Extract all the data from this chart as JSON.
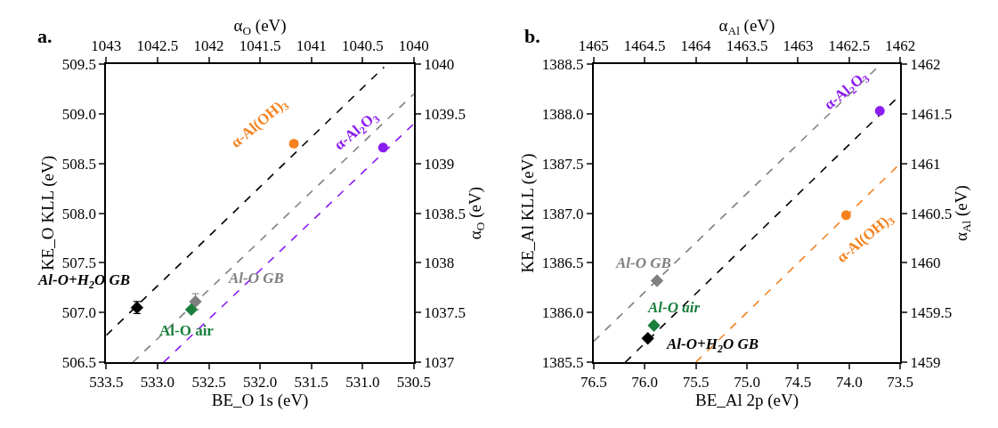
{
  "chart_data": [
    {
      "type": "scatter",
      "title": "a.",
      "xlabel": "BE_O 1s (eV)",
      "ylabel": "KE_O KLL (eV)",
      "x2label": "α$_{O}$ (eV)",
      "y2label": "α$_{O}$ (eV)",
      "legend": false,
      "xlim": [
        533.5,
        530.5
      ],
      "xticks": [
        533.5,
        {
          "value": 533,
          "label": "533.0"
        },
        532.5,
        {
          "value": 532,
          "label": "532.0"
        },
        531.5,
        {
          "value": 531,
          "label": "531.0"
        },
        530.5
      ],
      "ylim": [
        506.5,
        509.5
      ],
      "yticks": [
        506.5,
        {
          "value": 507,
          "label": "507.0"
        },
        507.5,
        {
          "value": 508,
          "label": "508.0"
        },
        508.5,
        {
          "value": 509,
          "label": "509.0"
        },
        509.5
      ],
      "x2lim": [
        1043,
        1040
      ],
      "x2ticks": [
        1043,
        1042.5,
        1042,
        1041.5,
        1041,
        1040.5,
        1040
      ],
      "y2lim": [
        1037,
        1040
      ],
      "y2ticks": [
        1037,
        1037.5,
        1038,
        1038.5,
        1039,
        1039.5,
        1040
      ],
      "series": [
        {
          "type": "line",
          "color": "#000000",
          "x": [
            533.5,
            530.79
          ],
          "values": [
            506.77,
            509.47
          ],
          "line_style": "dashed",
          "marker": "none"
        },
        {
          "type": "line",
          "color": "#808080",
          "x": [
            533.24,
            530.5
          ],
          "values": [
            506.5,
            509.2
          ],
          "line_style": "dashed",
          "marker": "none"
        },
        {
          "type": "line",
          "color": "#8b1cf0",
          "x": [
            532.94,
            530.5
          ],
          "values": [
            506.5,
            508.9
          ],
          "line_style": "dashed",
          "marker": "none"
        },
        {
          "name": "Al-O+H$_{2}$O GB",
          "color": "#000000",
          "x": [
            533.2
          ],
          "values": [
            507.05
          ],
          "errors": [
            0.06
          ],
          "marker": "diamond"
        },
        {
          "name": "Al-O GB",
          "color": "#808080",
          "x": [
            532.63
          ],
          "values": [
            507.11
          ],
          "errors": [
            0.08
          ],
          "marker": "diamond"
        },
        {
          "name": "Al-O air",
          "color": "#1a7f3c",
          "x": [
            532.67
          ],
          "values": [
            507.03
          ],
          "errors": [
            0.02
          ],
          "marker": "diamond"
        },
        {
          "name": "α-Al(OH)$_{3}$",
          "color": "#f5821f",
          "x": [
            531.67
          ],
          "values": [
            508.7
          ],
          "marker": "circle"
        },
        {
          "name": "α-Al$_{2}$O$_{3}$",
          "color": "#8b1cf0",
          "x": [
            530.8
          ],
          "values": [
            508.66
          ],
          "marker": "circle"
        }
      ]
    },
    {
      "type": "scatter",
      "title": "b.",
      "xlabel": "BE_Al 2p (eV)",
      "ylabel": "KE_Al KLL (eV)",
      "x2label": "α$_{Al}$ (eV)",
      "y2label": "α$_{Al}$ (eV)",
      "legend": false,
      "xlim": [
        76.5,
        73.5
      ],
      "xticks": [
        76.5,
        {
          "value": 76,
          "label": "76.0"
        },
        75.5,
        {
          "value": 75,
          "label": "75.0"
        },
        74.5,
        {
          "value": 74,
          "label": "74.0"
        },
        73.5
      ],
      "ylim": [
        1385.5,
        1388.5
      ],
      "yticks": [
        1385.5,
        {
          "value": 1386,
          "label": "1386.0"
        },
        1386.5,
        {
          "value": 1387,
          "label": "1387.0"
        },
        1387.5,
        {
          "value": 1388,
          "label": "1388.0"
        },
        1388.5
      ],
      "x2lim": [
        1465,
        1462
      ],
      "x2ticks": [
        1465,
        1464.5,
        1464,
        1463.5,
        1463,
        1462.5,
        1462
      ],
      "y2lim": [
        1459,
        1462
      ],
      "y2ticks": [
        1459,
        1459.5,
        1460,
        1460.5,
        1461,
        1461.5,
        1462
      ],
      "series": [
        {
          "type": "line",
          "color": "#808080",
          "x": [
            76.5,
            73.73
          ],
          "values": [
            1385.71,
            1388.46
          ],
          "line_style": "dashed",
          "marker": "none"
        },
        {
          "type": "line",
          "color": "#000000",
          "x": [
            76.19,
            73.5
          ],
          "values": [
            1385.5,
            1388.19
          ],
          "line_style": "dashed",
          "marker": "none"
        },
        {
          "type": "line",
          "color": "#f5821f",
          "x": [
            75.5,
            73.5
          ],
          "values": [
            1385.5,
            1387.5
          ],
          "line_style": "dashed",
          "marker": "none"
        },
        {
          "name": "Al-O GB",
          "color": "#808080",
          "x": [
            75.88
          ],
          "values": [
            1386.32
          ],
          "marker": "diamond"
        },
        {
          "name": "Al-O air",
          "color": "#1a7f3c",
          "x": [
            75.91
          ],
          "values": [
            1385.87
          ],
          "marker": "diamond"
        },
        {
          "name": "Al-O+H$_{2}$O GB",
          "color": "#000000",
          "x": [
            75.97
          ],
          "values": [
            1385.74
          ],
          "marker": "diamond"
        },
        {
          "name": "α-Al$_{2}$O$_{3}$",
          "color": "#8b1cf0",
          "x": [
            73.7
          ],
          "values": [
            1388.03
          ],
          "marker": "circle"
        },
        {
          "name": "α-Al(OH)$_{3}$",
          "color": "#f5821f",
          "x": [
            74.03
          ],
          "values": [
            1386.98
          ],
          "marker": "circle"
        }
      ]
    }
  ]
}
